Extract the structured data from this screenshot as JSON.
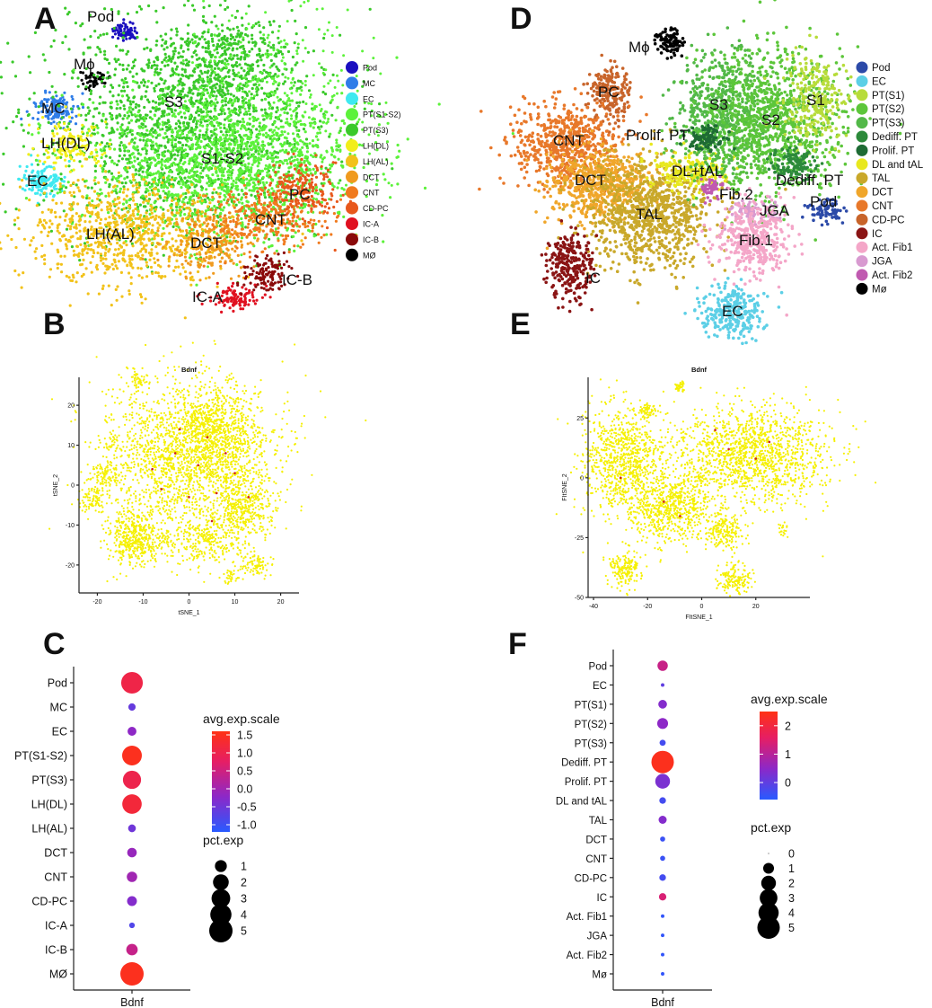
{
  "panels": {
    "A": "A",
    "B": "B",
    "C": "C",
    "D": "D",
    "E": "E",
    "F": "F"
  },
  "chart_data": [
    {
      "id": "A",
      "type": "scatter",
      "title": "",
      "clusters": [
        {
          "name": "Pod",
          "color": "#1a0fbf"
        },
        {
          "name": "MC",
          "color": "#2f7de8"
        },
        {
          "name": "EC",
          "color": "#3ee9f0"
        },
        {
          "name": "PT(S1-S2)",
          "color": "#5cf23a"
        },
        {
          "name": "PT(S3)",
          "color": "#3ac92a"
        },
        {
          "name": "LH(DL)",
          "color": "#f2ee1a"
        },
        {
          "name": "LH(AL)",
          "color": "#f2c21a"
        },
        {
          "name": "DCT",
          "color": "#f09a1e"
        },
        {
          "name": "CNT",
          "color": "#f07a1e"
        },
        {
          "name": "CD-PC",
          "color": "#e8581c"
        },
        {
          "name": "IC-A",
          "color": "#e01020"
        },
        {
          "name": "IC-B",
          "color": "#8a0a0a"
        },
        {
          "name": "MØ",
          "color": "#000000"
        }
      ],
      "annotations": [
        "Pod",
        "Mϕ",
        "MC",
        "LH(DL)",
        "EC",
        "S3",
        "S1-S2",
        "LH(AL)",
        "DCT",
        "CNT",
        "PC",
        "IC-A",
        "IC-B"
      ]
    },
    {
      "id": "D",
      "type": "scatter",
      "title": "",
      "clusters": [
        {
          "name": "Pod",
          "color": "#2c4aa8"
        },
        {
          "name": "EC",
          "color": "#5ccfe6"
        },
        {
          "name": "PT(S1)",
          "color": "#b7dc3a"
        },
        {
          "name": "PT(S2)",
          "color": "#5cc63a"
        },
        {
          "name": "PT(S3)",
          "color": "#52b848"
        },
        {
          "name": "Dediff. PT",
          "color": "#2c8a3a"
        },
        {
          "name": "Prolif. PT",
          "color": "#1e6b34"
        },
        {
          "name": "DL and tAL",
          "color": "#e8e81e"
        },
        {
          "name": "TAL",
          "color": "#c9a82a"
        },
        {
          "name": "DCT",
          "color": "#f0a62a"
        },
        {
          "name": "CNT",
          "color": "#e8782a"
        },
        {
          "name": "CD-PC",
          "color": "#c8642a"
        },
        {
          "name": "IC",
          "color": "#8a1414"
        },
        {
          "name": "Act. Fib1",
          "color": "#f4a6c8"
        },
        {
          "name": "JGA",
          "color": "#d89ad0"
        },
        {
          "name": "Act. Fib2",
          "color": "#c05ab0"
        },
        {
          "name": "Mø",
          "color": "#000000"
        }
      ],
      "annotations": [
        "Mϕ",
        "PC",
        "S3",
        "S2",
        "S1",
        "CNT",
        "Prolif. PT",
        "DCT",
        "DL+tAL",
        "Dediff. PT",
        "Fib.2",
        "TAL",
        "JGA",
        "Pod",
        "Fib.1",
        "IC",
        "EC"
      ]
    },
    {
      "id": "B",
      "type": "scatter",
      "title": "Bdnf",
      "xlabel": "tSNE_1",
      "ylabel": "tSNE_2",
      "xlim": [
        -24,
        24
      ],
      "ylim": [
        -27,
        27
      ],
      "xticks": [
        -20,
        -10,
        0,
        10,
        20
      ],
      "yticks": [
        -20,
        -10,
        0,
        10,
        20
      ],
      "xtick_labels": [
        "-20",
        "-10",
        "0",
        "10",
        "20"
      ],
      "ytick_labels": [
        "-20",
        "-10",
        "0",
        "10",
        "20"
      ]
    },
    {
      "id": "E",
      "type": "scatter",
      "title": "Bdnf",
      "xlabel": "FItSNE_1",
      "ylabel": "FItSNE_2",
      "xlim": [
        -42,
        40
      ],
      "ylim": [
        -50,
        42
      ],
      "xticks": [
        -40,
        -20,
        0,
        20
      ],
      "yticks": [
        25,
        0,
        -25,
        -50
      ],
      "xtick_labels": [
        "-40",
        "-20",
        "0",
        "20"
      ],
      "ytick_labels": [
        "25",
        "0",
        "-25",
        "-50"
      ]
    },
    {
      "id": "C",
      "type": "dotplot",
      "xlabel": "Bdnf",
      "categories": [
        "Pod",
        "MC",
        "EC",
        "PT(S1-S2)",
        "PT(S3)",
        "LH(DL)",
        "LH(AL)",
        "DCT",
        "CNT",
        "CD-PC",
        "IC-A",
        "IC-B",
        "MØ"
      ],
      "pct_exp": [
        4.2,
        0.25,
        0.45,
        3.4,
        2.8,
        3.3,
        0.3,
        0.55,
        0.7,
        0.6,
        0.1,
        0.9,
        5.0
      ],
      "avg_exp_scale": [
        1.05,
        -0.6,
        -0.2,
        1.5,
        1.0,
        1.2,
        -0.5,
        -0.1,
        0.0,
        -0.3,
        -0.8,
        0.4,
        1.5
      ],
      "color_legend_title": "avg.exp.scale",
      "color_range": [
        -1.2,
        1.6
      ],
      "color_ticks": [
        "1.5",
        "1.0",
        "0.5",
        "0.0",
        "-0.5",
        "-1.0"
      ],
      "color_tick_values": [
        1.5,
        1.0,
        0.5,
        0.0,
        -0.5,
        -1.0
      ],
      "size_legend_title": "pct.exp",
      "size_ticks": [
        "1",
        "2",
        "3",
        "4",
        "5"
      ],
      "size_tick_values": [
        1,
        2,
        3,
        4,
        5
      ]
    },
    {
      "id": "F",
      "type": "dotplot",
      "xlabel": "Bdnf",
      "categories": [
        "Pod",
        "EC",
        "PT(S1)",
        "PT(S2)",
        "PT(S3)",
        "Dediff. PT",
        "Prolif. PT",
        "DL and tAL",
        "TAL",
        "DCT",
        "CNT",
        "CD-PC",
        "IC",
        "Act. Fib1",
        "JGA",
        "Act. Fib2",
        "Mø"
      ],
      "pct_exp": [
        0.9,
        0.05,
        0.6,
        1.0,
        0.25,
        5.0,
        2.0,
        0.3,
        0.5,
        0.15,
        0.15,
        0.3,
        0.4,
        0.05,
        0.05,
        0.05,
        0.05
      ],
      "avg_exp_scale": [
        1.2,
        0.0,
        0.4,
        0.5,
        -0.3,
        2.4,
        0.3,
        -0.3,
        0.4,
        -0.4,
        -0.4,
        -0.3,
        1.4,
        -0.5,
        -0.5,
        -0.5,
        -0.5
      ],
      "color_legend_title": "avg.exp.scale",
      "color_range": [
        -0.6,
        2.5
      ],
      "color_ticks": [
        "2",
        "1",
        "0"
      ],
      "color_tick_values": [
        2,
        1,
        0
      ],
      "size_legend_title": "pct.exp",
      "size_ticks": [
        "0",
        "1",
        "2",
        "3",
        "4",
        "5"
      ],
      "size_tick_values": [
        0,
        1,
        2,
        3,
        4,
        5
      ]
    }
  ]
}
